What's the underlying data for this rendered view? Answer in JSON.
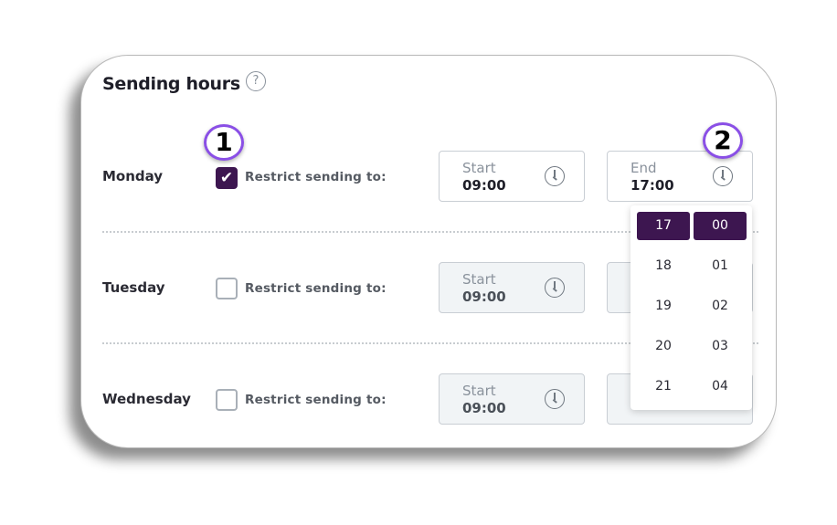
{
  "title": "Sending hours",
  "help_icon": "?",
  "restrict_label": "Restrict sending to:",
  "days": [
    {
      "name": "Monday",
      "checked": true,
      "start_label": "Start",
      "start": "09:00",
      "end_label": "End",
      "end": "17:00"
    },
    {
      "name": "Tuesday",
      "checked": false,
      "start_label": "Start",
      "start": "09:00"
    },
    {
      "name": "Wednesday",
      "checked": false,
      "start_label": "Start",
      "start": "09:00"
    }
  ],
  "check_glyph": "✔",
  "dropdown": {
    "hours": [
      "17",
      "18",
      "19",
      "20",
      "21"
    ],
    "minutes": [
      "00",
      "01",
      "02",
      "03",
      "04"
    ],
    "selected_hour": "17",
    "selected_minute": "00"
  },
  "badges": [
    "1",
    "2"
  ],
  "colors": {
    "accent": "#3d1650",
    "badge_ring": "#8a4fe6"
  }
}
